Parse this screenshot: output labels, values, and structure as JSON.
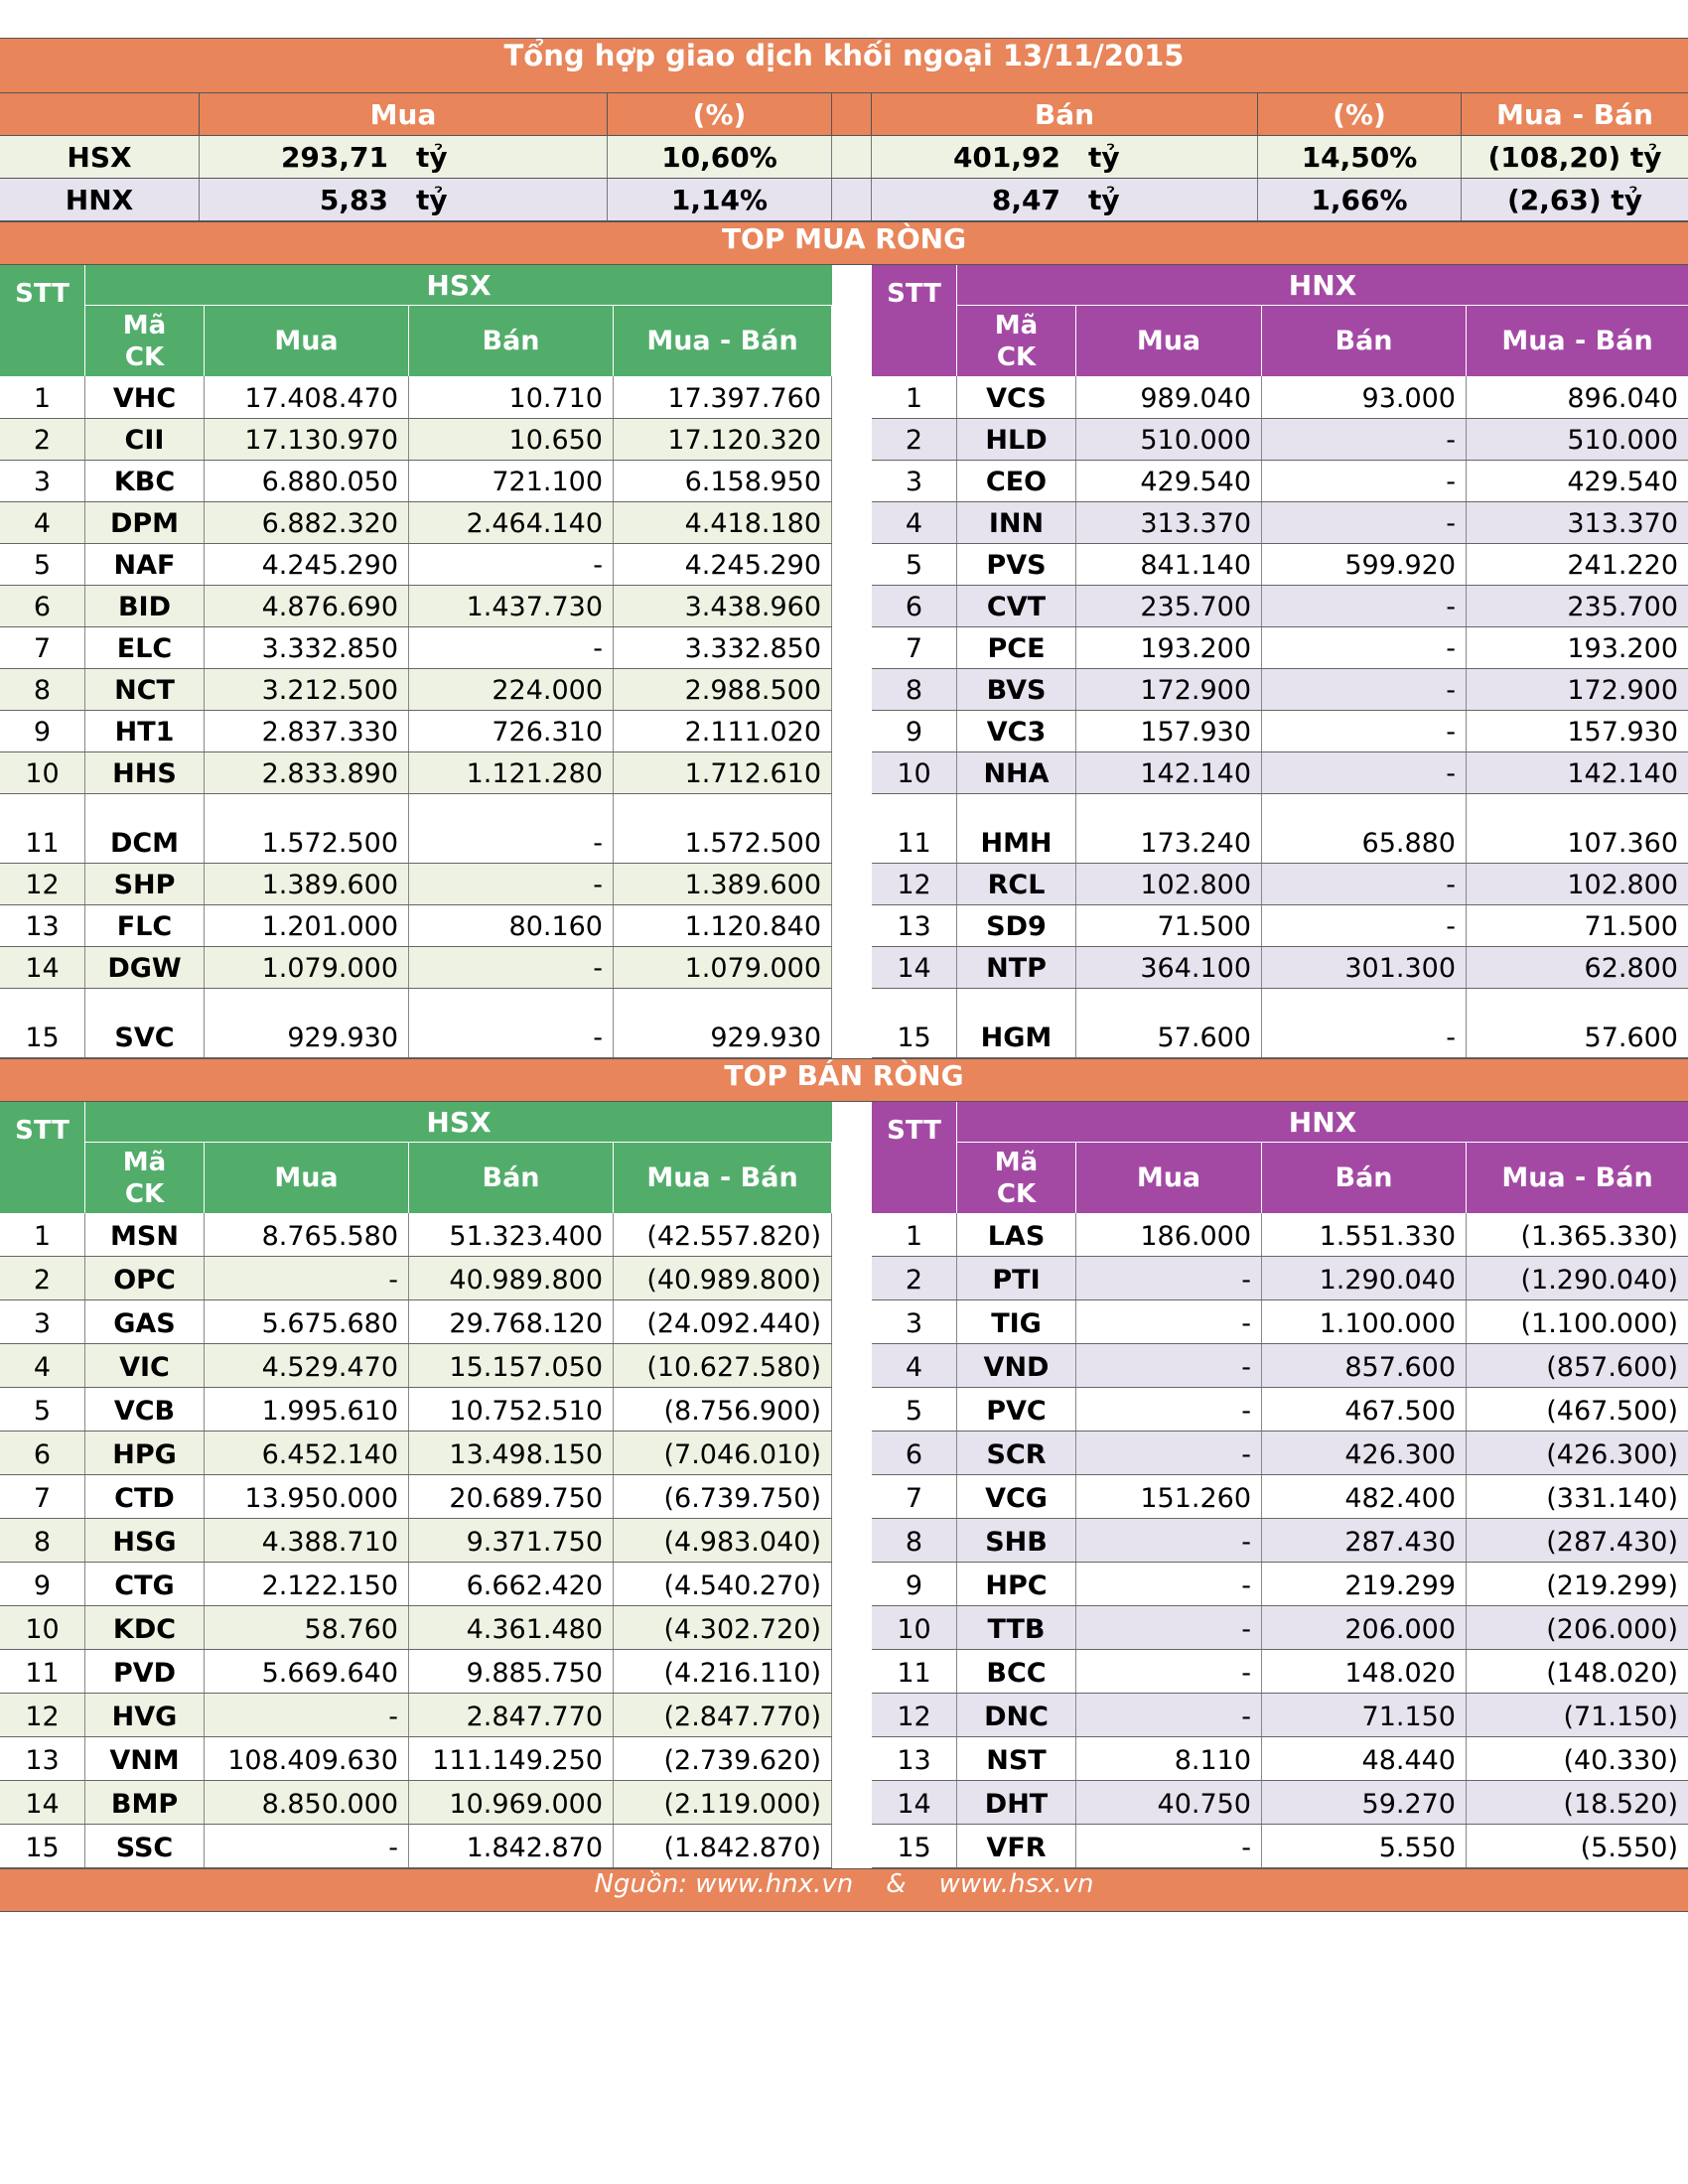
{
  "title": "Tổng hợp giao dịch khối ngoại 13/11/2015",
  "summary": {
    "headers": {
      "mua": "Mua",
      "pct1": "(%)",
      "ban": "Bán",
      "pct2": "(%)",
      "net": "Mua - Bán"
    },
    "rows": [
      {
        "exchange": "HSX",
        "mua": "293,71",
        "mua_unit": "tỷ",
        "mua_pct": "10,60%",
        "ban": "401,92",
        "ban_unit": "tỷ",
        "ban_pct": "14,50%",
        "net": "(108,20) tỷ"
      },
      {
        "exchange": "HNX",
        "mua": "5,83",
        "mua_unit": "tỷ",
        "mua_pct": "1,14%",
        "ban": "8,47",
        "ban_unit": "tỷ",
        "ban_pct": "1,66%",
        "net": "(2,63) tỷ"
      }
    ]
  },
  "col_headers": {
    "stt": "STT",
    "ma_line1": "Mã",
    "ma_line2": "CK",
    "mua": "Mua",
    "ban": "Bán",
    "net": "Mua - Bán",
    "hsx": "HSX",
    "hnx": "HNX"
  },
  "top_buy": {
    "label": "TOP MUA RÒNG",
    "hsx": [
      [
        "1",
        "VHC",
        "17.408.470",
        "10.710",
        "17.397.760"
      ],
      [
        "2",
        "CII",
        "17.130.970",
        "10.650",
        "17.120.320"
      ],
      [
        "3",
        "KBC",
        "6.880.050",
        "721.100",
        "6.158.950"
      ],
      [
        "4",
        "DPM",
        "6.882.320",
        "2.464.140",
        "4.418.180"
      ],
      [
        "5",
        "NAF",
        "4.245.290",
        "-",
        "4.245.290"
      ],
      [
        "6",
        "BID",
        "4.876.690",
        "1.437.730",
        "3.438.960"
      ],
      [
        "7",
        "ELC",
        "3.332.850",
        "-",
        "3.332.850"
      ],
      [
        "8",
        "NCT",
        "3.212.500",
        "224.000",
        "2.988.500"
      ],
      [
        "9",
        "HT1",
        "2.837.330",
        "726.310",
        "2.111.020"
      ],
      [
        "10",
        "HHS",
        "2.833.890",
        "1.121.280",
        "1.712.610"
      ],
      [
        "11",
        "DCM",
        "1.572.500",
        "-",
        "1.572.500"
      ],
      [
        "12",
        "SHP",
        "1.389.600",
        "-",
        "1.389.600"
      ],
      [
        "13",
        "FLC",
        "1.201.000",
        "80.160",
        "1.120.840"
      ],
      [
        "14",
        "DGW",
        "1.079.000",
        "-",
        "1.079.000"
      ],
      [
        "15",
        "SVC",
        "929.930",
        "-",
        "929.930"
      ]
    ],
    "hnx": [
      [
        "1",
        "VCS",
        "989.040",
        "93.000",
        "896.040"
      ],
      [
        "2",
        "HLD",
        "510.000",
        "-",
        "510.000"
      ],
      [
        "3",
        "CEO",
        "429.540",
        "-",
        "429.540"
      ],
      [
        "4",
        "INN",
        "313.370",
        "-",
        "313.370"
      ],
      [
        "5",
        "PVS",
        "841.140",
        "599.920",
        "241.220"
      ],
      [
        "6",
        "CVT",
        "235.700",
        "-",
        "235.700"
      ],
      [
        "7",
        "PCE",
        "193.200",
        "-",
        "193.200"
      ],
      [
        "8",
        "BVS",
        "172.900",
        "-",
        "172.900"
      ],
      [
        "9",
        "VC3",
        "157.930",
        "-",
        "157.930"
      ],
      [
        "10",
        "NHA",
        "142.140",
        "-",
        "142.140"
      ],
      [
        "11",
        "HMH",
        "173.240",
        "65.880",
        "107.360"
      ],
      [
        "12",
        "RCL",
        "102.800",
        "-",
        "102.800"
      ],
      [
        "13",
        "SD9",
        "71.500",
        "-",
        "71.500"
      ],
      [
        "14",
        "NTP",
        "364.100",
        "301.300",
        "62.800"
      ],
      [
        "15",
        "HGM",
        "57.600",
        "-",
        "57.600"
      ]
    ]
  },
  "top_sell": {
    "label": "TOP BÁN RÒNG",
    "hsx": [
      [
        "1",
        "MSN",
        "8.765.580",
        "51.323.400",
        "(42.557.820)"
      ],
      [
        "2",
        "OPC",
        "-",
        "40.989.800",
        "(40.989.800)"
      ],
      [
        "3",
        "GAS",
        "5.675.680",
        "29.768.120",
        "(24.092.440)"
      ],
      [
        "4",
        "VIC",
        "4.529.470",
        "15.157.050",
        "(10.627.580)"
      ],
      [
        "5",
        "VCB",
        "1.995.610",
        "10.752.510",
        "(8.756.900)"
      ],
      [
        "6",
        "HPG",
        "6.452.140",
        "13.498.150",
        "(7.046.010)"
      ],
      [
        "7",
        "CTD",
        "13.950.000",
        "20.689.750",
        "(6.739.750)"
      ],
      [
        "8",
        "HSG",
        "4.388.710",
        "9.371.750",
        "(4.983.040)"
      ],
      [
        "9",
        "CTG",
        "2.122.150",
        "6.662.420",
        "(4.540.270)"
      ],
      [
        "10",
        "KDC",
        "58.760",
        "4.361.480",
        "(4.302.720)"
      ],
      [
        "11",
        "PVD",
        "5.669.640",
        "9.885.750",
        "(4.216.110)"
      ],
      [
        "12",
        "HVG",
        "-",
        "2.847.770",
        "(2.847.770)"
      ],
      [
        "13",
        "VNM",
        "108.409.630",
        "111.149.250",
        "(2.739.620)"
      ],
      [
        "14",
        "BMP",
        "8.850.000",
        "10.969.000",
        "(2.119.000)"
      ],
      [
        "15",
        "SSC",
        "-",
        "1.842.870",
        "(1.842.870)"
      ]
    ],
    "hnx": [
      [
        "1",
        "LAS",
        "186.000",
        "1.551.330",
        "(1.365.330)"
      ],
      [
        "2",
        "PTI",
        "-",
        "1.290.040",
        "(1.290.040)"
      ],
      [
        "3",
        "TIG",
        "-",
        "1.100.000",
        "(1.100.000)"
      ],
      [
        "4",
        "VND",
        "-",
        "857.600",
        "(857.600)"
      ],
      [
        "5",
        "PVC",
        "-",
        "467.500",
        "(467.500)"
      ],
      [
        "6",
        "SCR",
        "-",
        "426.300",
        "(426.300)"
      ],
      [
        "7",
        "VCG",
        "151.260",
        "482.400",
        "(331.140)"
      ],
      [
        "8",
        "SHB",
        "-",
        "287.430",
        "(287.430)"
      ],
      [
        "9",
        "HPC",
        "-",
        "219.299",
        "(219.299)"
      ],
      [
        "10",
        "TTB",
        "-",
        "206.000",
        "(206.000)"
      ],
      [
        "11",
        "BCC",
        "-",
        "148.020",
        "(148.020)"
      ],
      [
        "12",
        "DNC",
        "-",
        "71.150",
        "(71.150)"
      ],
      [
        "13",
        "NST",
        "8.110",
        "48.440",
        "(40.330)"
      ],
      [
        "14",
        "DHT",
        "40.750",
        "59.270",
        "(18.520)"
      ],
      [
        "15",
        "VFR",
        "-",
        "5.550",
        "(5.550)"
      ]
    ]
  },
  "source": "Nguồn: www.hnx.vn    &    www.hsx.vn",
  "colors": {
    "orange": "#e8855a",
    "green": "#52ad6b",
    "purple": "#a349a4"
  }
}
